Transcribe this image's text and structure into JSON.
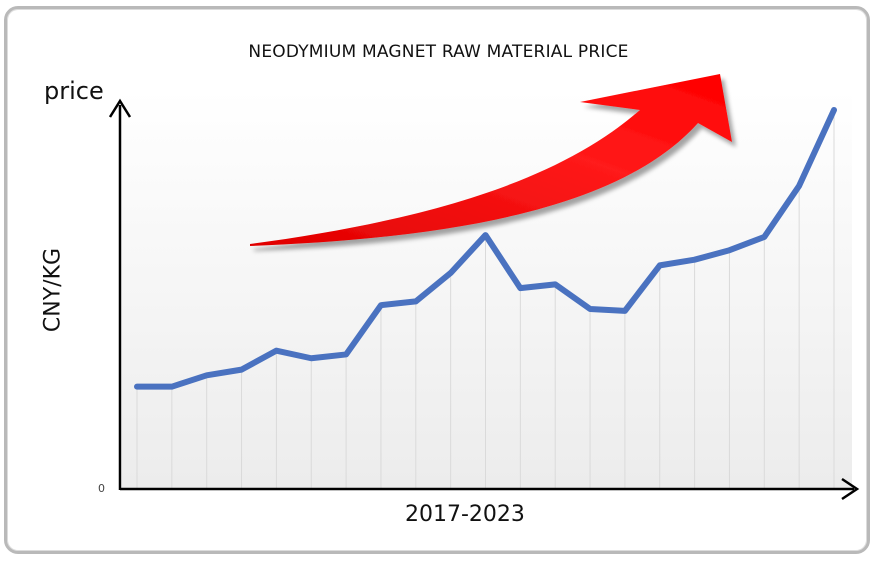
{
  "chart_data": {
    "type": "line",
    "title": "NEODYMIUM MAGNET RAW MATERIAL PRICE",
    "y_name": "price",
    "ylabel": "CNY/KG",
    "xlabel": "2017-2023",
    "y_tick_labels": [
      "0"
    ],
    "ylim": [
      0,
      100
    ],
    "series": [
      {
        "values": [
          27,
          27,
          30,
          31.5,
          36.5,
          34.5,
          35.5,
          48.5,
          49.5,
          57,
          67,
          53,
          54,
          47.5,
          47,
          59,
          60.5,
          63,
          66.5,
          80,
          100
        ]
      }
    ],
    "colors": {
      "line": "#4a72c0",
      "arrow": "#ff0000",
      "axis": "#000000",
      "frame": "#b9b9b9"
    },
    "grid": true,
    "decoration": "red-upward-trend-arrow"
  }
}
